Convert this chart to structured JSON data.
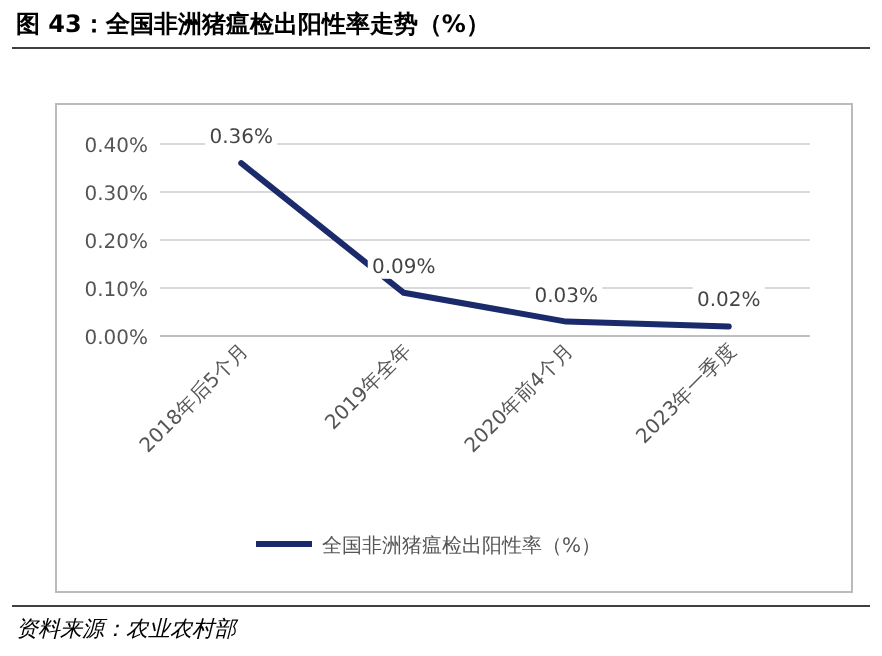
{
  "chart_data": {
    "type": "line",
    "title": "图 43：全国非洲猪瘟检出阳性率走势（%）",
    "categories": [
      "2018年后5个月",
      "2019年全年",
      "2020年前4个月",
      "2023年一季度"
    ],
    "series": [
      {
        "name": "全国非洲猪瘟检出阳性率（%）",
        "color": "#1b2a6b",
        "values": [
          0.36,
          0.09,
          0.03,
          0.02
        ],
        "value_labels": [
          "0.36%",
          "0.09%",
          "0.03%",
          "0.02%"
        ]
      }
    ],
    "ylim": [
      0,
      0.4
    ],
    "yticks": [
      {
        "value": 0,
        "label": "0.00%"
      },
      {
        "value": 0.1,
        "label": "0.10%"
      },
      {
        "value": 0.2,
        "label": "0.20%"
      },
      {
        "value": 0.3,
        "label": "0.30%"
      },
      {
        "value": 0.4,
        "label": "0.40%"
      }
    ],
    "grid": "y",
    "legend": "bottom",
    "marker": "none",
    "line_style": "solid",
    "annotations": [
      "资料来源：农业农村部"
    ]
  }
}
